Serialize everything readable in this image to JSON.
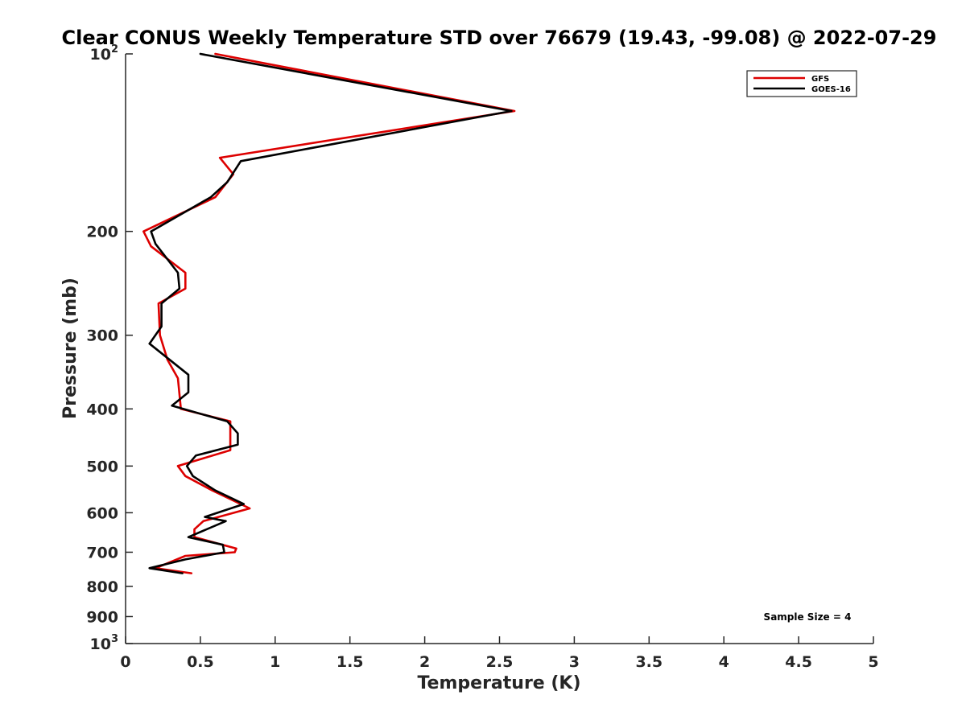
{
  "chart_data": {
    "type": "line",
    "title": "Clear CONUS Weekly Temperature STD over 76679 (19.43, -99.08) @ 2022-07-29",
    "xlabel": "Temperature (K)",
    "ylabel": "Pressure (mb)",
    "xlim": [
      0,
      5
    ],
    "ylim": [
      100,
      1000
    ],
    "y_scale": "log",
    "y_reversed": true,
    "grid": false,
    "legend_position": "top-right",
    "x_ticks": [
      "0",
      "0.5",
      "1",
      "1.5",
      "2",
      "2.5",
      "3",
      "3.5",
      "4",
      "4.5",
      "5"
    ],
    "y_ticks": [
      {
        "value": 100,
        "base": "10",
        "exp": "2"
      },
      {
        "value": 200,
        "label": "200"
      },
      {
        "value": 300,
        "label": "300"
      },
      {
        "value": 400,
        "label": "400"
      },
      {
        "value": 500,
        "label": "500"
      },
      {
        "value": 600,
        "label": "600"
      },
      {
        "value": 700,
        "label": "700"
      },
      {
        "value": 800,
        "label": "800"
      },
      {
        "value": 900,
        "label": "900"
      },
      {
        "value": 1000,
        "base": "10",
        "exp": "3"
      }
    ],
    "series": [
      {
        "name": "GFS",
        "color": "#dd0000",
        "points": [
          [
            0.6,
            100
          ],
          [
            2.6,
            125
          ],
          [
            0.63,
            150
          ],
          [
            0.72,
            160
          ],
          [
            0.6,
            175
          ],
          [
            0.12,
            200
          ],
          [
            0.17,
            212
          ],
          [
            0.4,
            235
          ],
          [
            0.4,
            250
          ],
          [
            0.22,
            265
          ],
          [
            0.23,
            300
          ],
          [
            0.28,
            330
          ],
          [
            0.35,
            355
          ],
          [
            0.37,
            400
          ],
          [
            0.7,
            420
          ],
          [
            0.7,
            470
          ],
          [
            0.35,
            500
          ],
          [
            0.4,
            520
          ],
          [
            0.58,
            550
          ],
          [
            0.83,
            590
          ],
          [
            0.52,
            620
          ],
          [
            0.46,
            640
          ],
          [
            0.46,
            660
          ],
          [
            0.74,
            690
          ],
          [
            0.73,
            700
          ],
          [
            0.4,
            710
          ],
          [
            0.2,
            745
          ],
          [
            0.44,
            760
          ]
        ]
      },
      {
        "name": "GOES-16",
        "color": "#000000",
        "points": [
          [
            0.5,
            100
          ],
          [
            2.58,
            125
          ],
          [
            0.77,
            152
          ],
          [
            0.68,
            165
          ],
          [
            0.57,
            175
          ],
          [
            0.17,
            200
          ],
          [
            0.2,
            210
          ],
          [
            0.35,
            235
          ],
          [
            0.36,
            250
          ],
          [
            0.24,
            265
          ],
          [
            0.24,
            290
          ],
          [
            0.16,
            310
          ],
          [
            0.42,
            350
          ],
          [
            0.42,
            375
          ],
          [
            0.31,
            395
          ],
          [
            0.68,
            420
          ],
          [
            0.75,
            440
          ],
          [
            0.75,
            460
          ],
          [
            0.47,
            480
          ],
          [
            0.41,
            500
          ],
          [
            0.45,
            520
          ],
          [
            0.6,
            550
          ],
          [
            0.79,
            580
          ],
          [
            0.53,
            610
          ],
          [
            0.67,
            620
          ],
          [
            0.42,
            660
          ],
          [
            0.65,
            680
          ],
          [
            0.66,
            700
          ],
          [
            0.4,
            720
          ],
          [
            0.16,
            745
          ],
          [
            0.38,
            760
          ]
        ]
      }
    ],
    "annotation": "Sample Size = 4"
  }
}
